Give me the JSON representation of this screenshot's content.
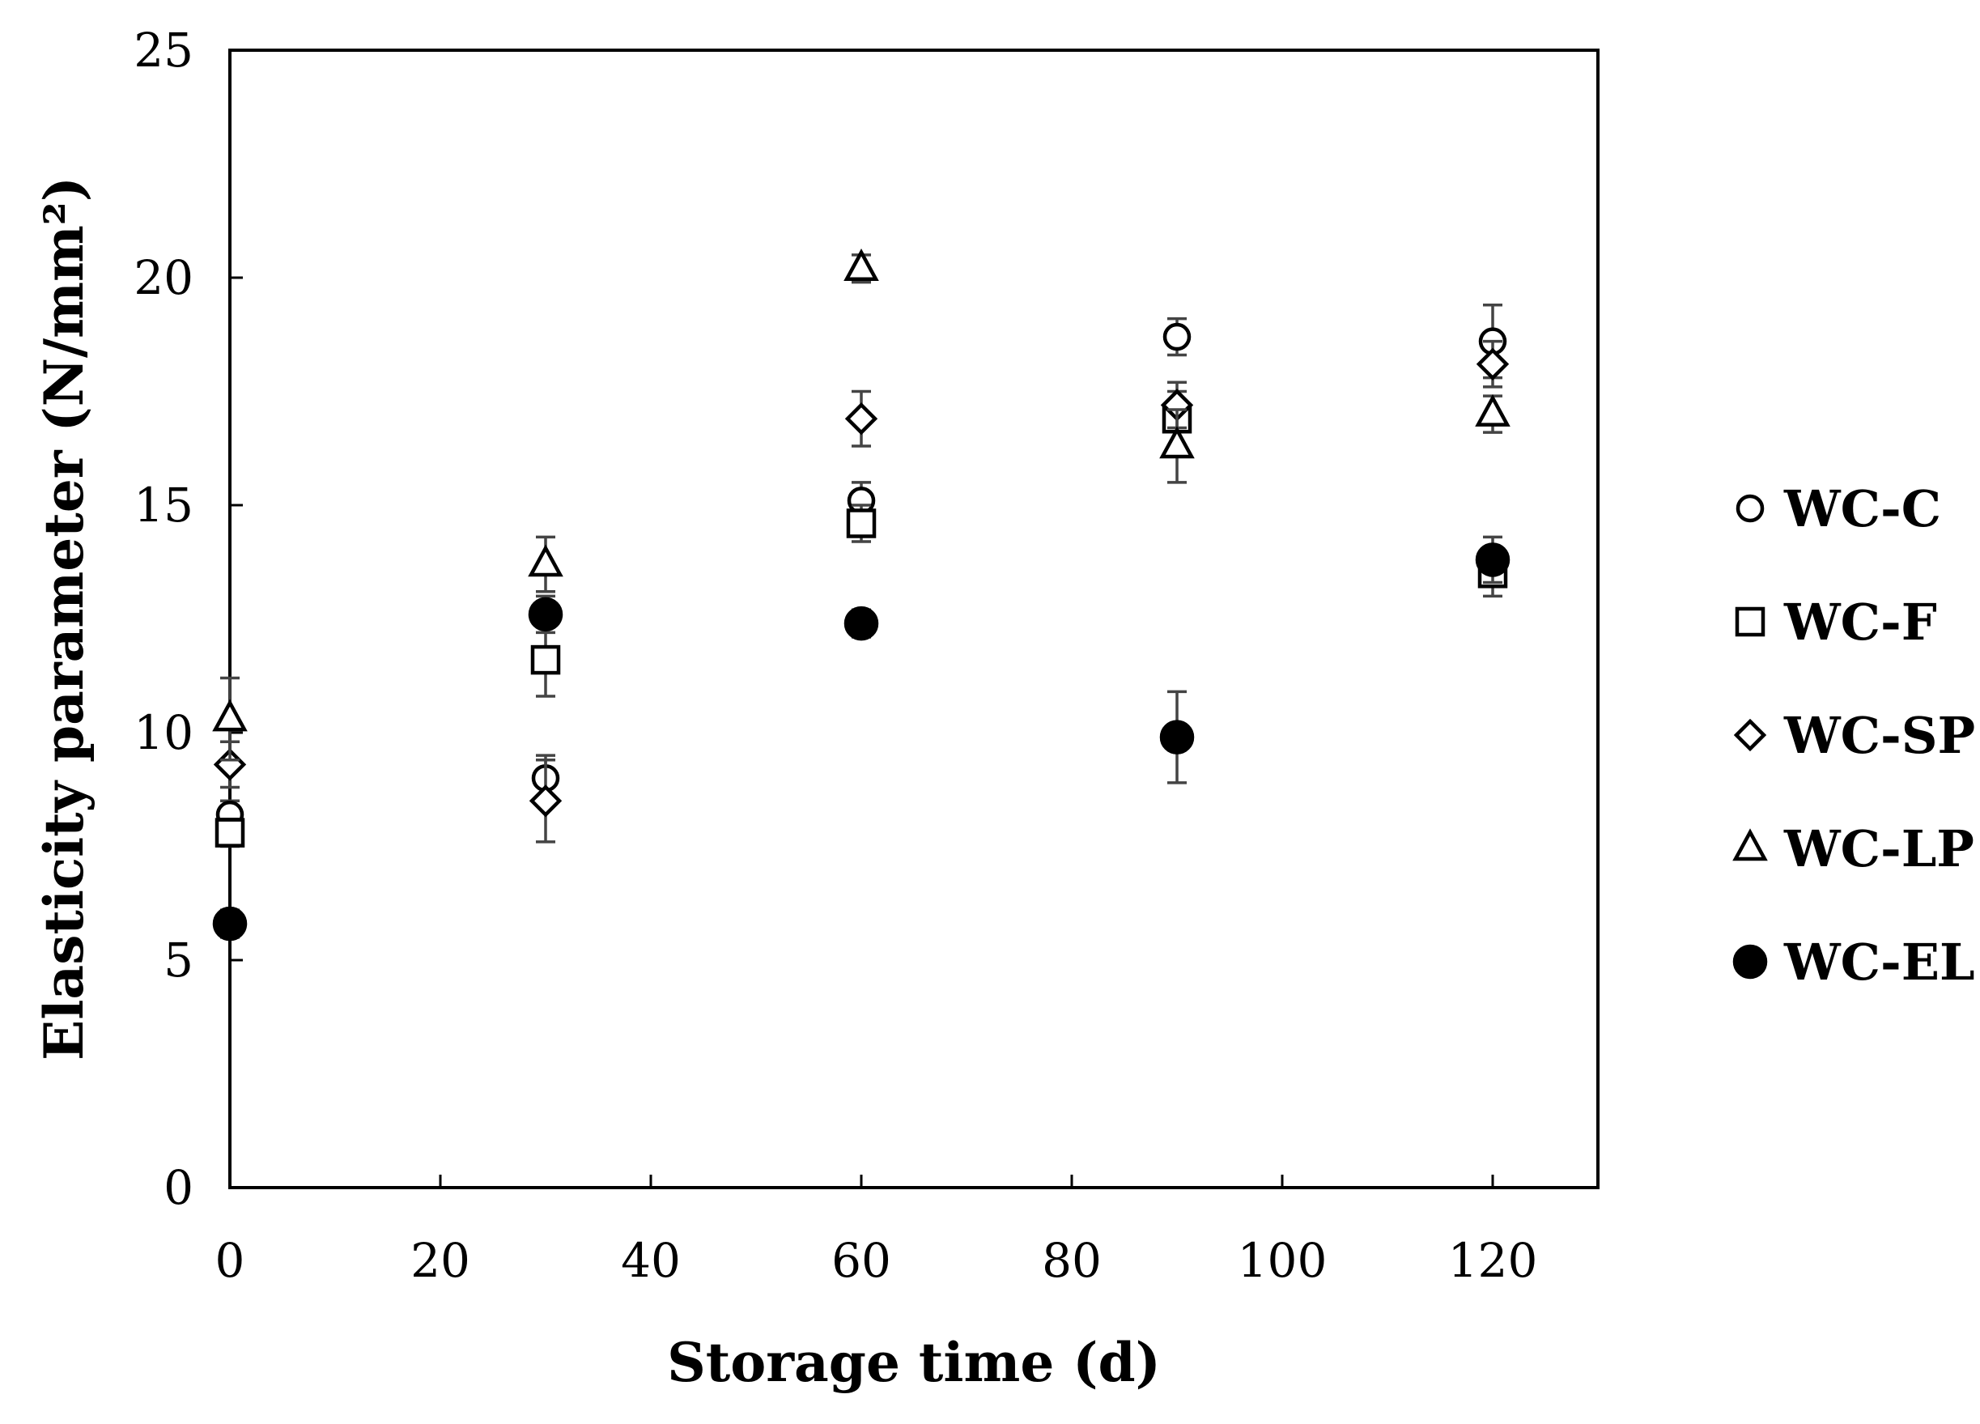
{
  "chart_data": {
    "type": "scatter",
    "xlabel": "Storage time (d)",
    "ylabel": "Elasticity parameter (N/mm²)",
    "xlim": [
      0,
      130
    ],
    "ylim": [
      0,
      25
    ],
    "xticks": [
      0,
      20,
      40,
      60,
      80,
      100,
      120
    ],
    "yticks": [
      0,
      5,
      10,
      15,
      20,
      25
    ],
    "x_tick_labels": [
      "0",
      "20",
      "40",
      "60",
      "80",
      "100",
      "120"
    ],
    "y_tick_labels": [
      "0",
      "5",
      "10",
      "15",
      "20",
      "25"
    ],
    "grid": false,
    "legend_position": "right",
    "error_bars": true,
    "series": [
      {
        "name": "WC-C",
        "marker": "circle-open",
        "x": [
          0,
          30,
          60,
          90,
          120
        ],
        "y": [
          8.2,
          9.0,
          15.1,
          18.7,
          18.6
        ],
        "err": [
          0.3,
          0.5,
          0.4,
          0.4,
          0.8
        ]
      },
      {
        "name": "WC-F",
        "marker": "square-open",
        "x": [
          0,
          30,
          60,
          90,
          120
        ],
        "y": [
          7.8,
          11.6,
          14.6,
          16.9,
          13.5
        ],
        "err": [
          0.3,
          0.8,
          0.4,
          0.6,
          0.5
        ]
      },
      {
        "name": "WC-SP",
        "marker": "diamond-open",
        "x": [
          0,
          30,
          60,
          90,
          120
        ],
        "y": [
          9.3,
          8.5,
          16.9,
          17.2,
          18.1
        ],
        "err": [
          0.5,
          0.9,
          0.6,
          0.5,
          0.5
        ]
      },
      {
        "name": "WC-LP",
        "marker": "triangle-open",
        "x": [
          0,
          30,
          60,
          90,
          120
        ],
        "y": [
          10.3,
          13.7,
          20.2,
          16.3,
          17.0
        ],
        "err": [
          0.9,
          0.6,
          0.3,
          0.8,
          0.4
        ]
      },
      {
        "name": "WC-EL",
        "marker": "circle-filled",
        "x": [
          0,
          30,
          60,
          90,
          120
        ],
        "y": [
          5.8,
          12.6,
          12.4,
          9.9,
          13.8
        ],
        "err": [
          0.3,
          0.4,
          0.3,
          1.0,
          0.5
        ]
      }
    ]
  }
}
